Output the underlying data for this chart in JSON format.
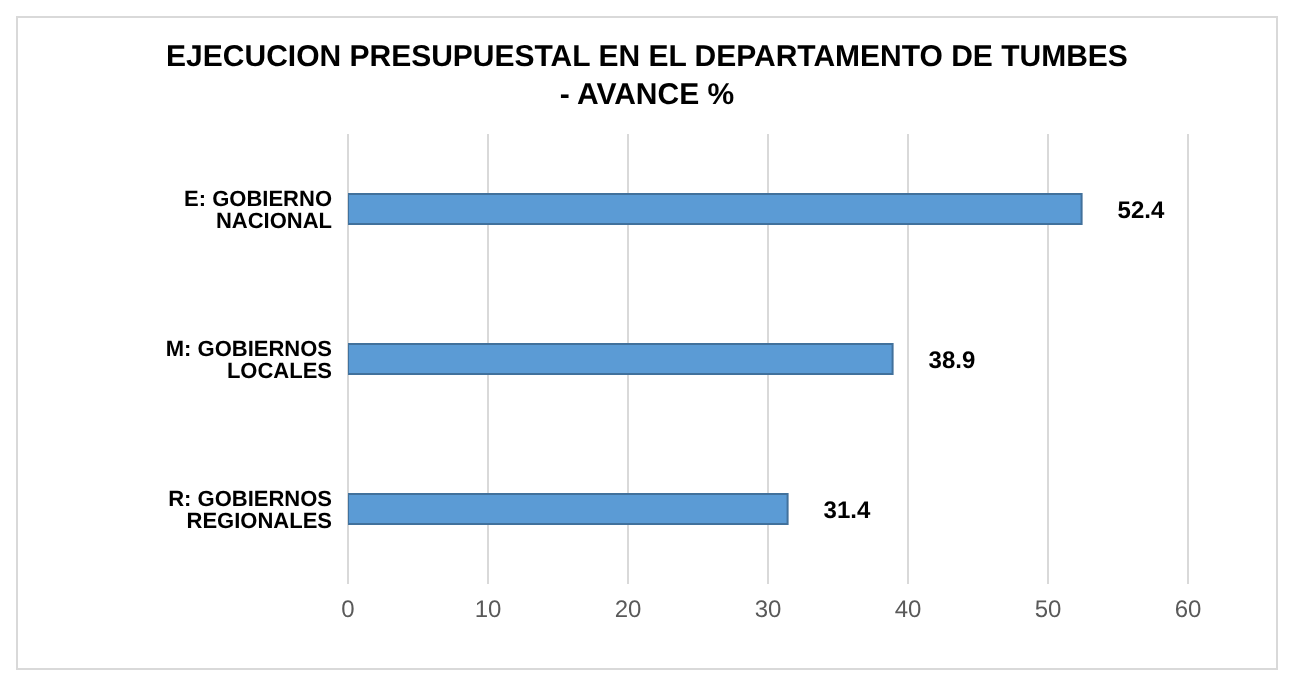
{
  "chart_data": {
    "type": "bar",
    "orientation": "horizontal",
    "title": "EJECUCION PRESUPUESTAL EN EL DEPARTAMENTO DE TUMBES\n- AVANCE %",
    "categories": [
      "E: GOBIERNO NACIONAL",
      "M: GOBIERNOS LOCALES",
      "R: GOBIERNOS REGIONALES"
    ],
    "values": [
      52.4,
      38.9,
      31.4
    ],
    "color": "#5b9bd5",
    "xlim": [
      0,
      60
    ],
    "xticks": [
      0,
      10,
      20,
      30,
      40,
      50,
      60
    ],
    "grid": "x",
    "data_labels": true
  }
}
